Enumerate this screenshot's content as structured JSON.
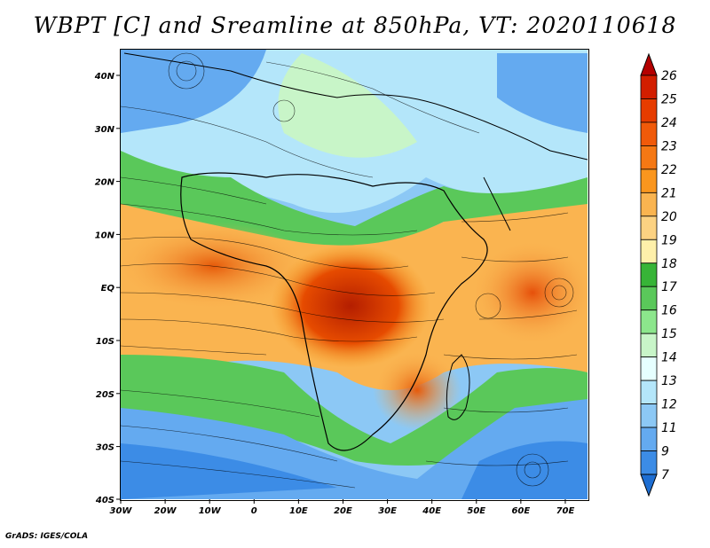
{
  "title": "WBPT [C] and Sreamline at 850hPa, VT: 2020110618",
  "credit": "GrADS: IGES/COLA",
  "map": {
    "lon_labels": [
      "30W",
      "20W",
      "10W",
      "0",
      "10E",
      "20E",
      "30E",
      "40E",
      "50E",
      "60E",
      "70E"
    ],
    "lat_labels": [
      "40N",
      "30N",
      "20N",
      "10N",
      "EQ",
      "10S",
      "20S",
      "30S",
      "40S"
    ]
  },
  "colorbar": {
    "levels": [
      "26",
      "25",
      "24",
      "23",
      "22",
      "21",
      "20",
      "19",
      "18",
      "17",
      "16",
      "15",
      "14",
      "13",
      "12",
      "11",
      "9",
      "7"
    ],
    "colors": [
      "#b40000",
      "#d21e00",
      "#e63c00",
      "#f05a0a",
      "#f57814",
      "#fa961e",
      "#fab450",
      "#fcd282",
      "#fef0aa",
      "#37b437",
      "#5ac85a",
      "#8ce68c",
      "#c8f5c8",
      "#e6ffff",
      "#b4e6fa",
      "#8cc8f5",
      "#64aaf0",
      "#3c8ce6",
      "#1e6ed2"
    ]
  }
}
